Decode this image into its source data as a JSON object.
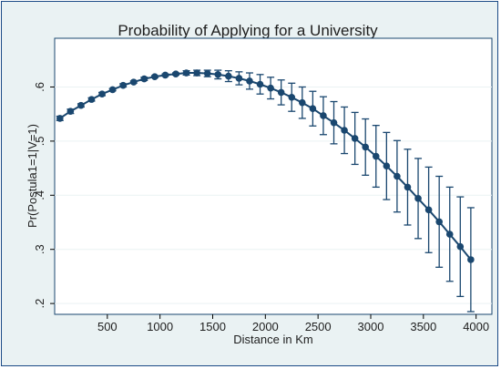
{
  "chart_data": {
    "type": "line",
    "title": "Probability of Applying for a University",
    "xlabel": "Distance in Km",
    "ylabel": "Pr(Postula1=1|V=1)",
    "xlim": [
      0,
      4150
    ],
    "ylim": [
      0.18,
      0.69
    ],
    "xticks": [
      500,
      1000,
      1500,
      2000,
      2500,
      3000,
      3500,
      4000
    ],
    "yticks": [
      0.2,
      0.3,
      0.4,
      0.5,
      0.6
    ],
    "ytick_labels": [
      ".2",
      ".3",
      ".4",
      ".5",
      ".6"
    ],
    "grid": true,
    "line_color": "#1a476f",
    "series": [
      {
        "x": [
          50,
          150,
          250,
          350,
          450,
          550,
          650,
          750,
          850,
          950,
          1050,
          1150,
          1250,
          1350,
          1450,
          1550,
          1650,
          1750,
          1850,
          1950,
          2050,
          2150,
          2250,
          2350,
          2450,
          2550,
          2650,
          2750,
          2850,
          2950,
          3050,
          3150,
          3250,
          3350,
          3450,
          3550,
          3650,
          3750,
          3850,
          3950
        ],
        "y": [
          0.542,
          0.555,
          0.566,
          0.577,
          0.587,
          0.595,
          0.603,
          0.609,
          0.615,
          0.619,
          0.622,
          0.624,
          0.626,
          0.626,
          0.625,
          0.623,
          0.62,
          0.616,
          0.611,
          0.605,
          0.598,
          0.59,
          0.581,
          0.571,
          0.56,
          0.547,
          0.534,
          0.52,
          0.505,
          0.489,
          0.472,
          0.454,
          0.435,
          0.415,
          0.394,
          0.373,
          0.351,
          0.328,
          0.305,
          0.281
        ],
        "lower": [
          0.538,
          0.551,
          0.563,
          0.574,
          0.584,
          0.593,
          0.6,
          0.607,
          0.612,
          0.617,
          0.62,
          0.622,
          0.622,
          0.621,
          0.619,
          0.615,
          0.61,
          0.604,
          0.596,
          0.587,
          0.578,
          0.567,
          0.555,
          0.542,
          0.528,
          0.512,
          0.495,
          0.477,
          0.457,
          0.437,
          0.415,
          0.392,
          0.369,
          0.345,
          0.32,
          0.294,
          0.267,
          0.241,
          0.213,
          0.185
        ],
        "upper": [
          0.546,
          0.559,
          0.569,
          0.58,
          0.59,
          0.597,
          0.606,
          0.611,
          0.618,
          0.621,
          0.624,
          0.626,
          0.63,
          0.631,
          0.631,
          0.631,
          0.63,
          0.628,
          0.626,
          0.623,
          0.618,
          0.613,
          0.607,
          0.6,
          0.592,
          0.582,
          0.573,
          0.563,
          0.553,
          0.541,
          0.529,
          0.516,
          0.501,
          0.485,
          0.468,
          0.452,
          0.435,
          0.415,
          0.397,
          0.377
        ]
      }
    ]
  }
}
